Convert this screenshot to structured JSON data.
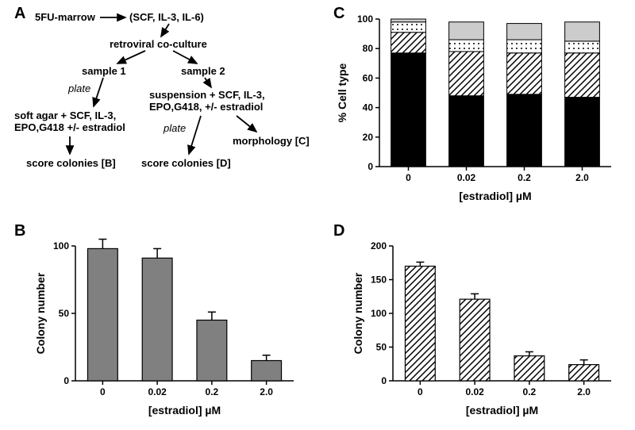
{
  "panelA": {
    "label": "A",
    "nodes": {
      "n1": "5FU-marrow",
      "n2": "(SCF, IL-3, IL-6)",
      "n3": "retroviral co-culture",
      "n4": "sample 1",
      "n5": "sample 2",
      "n6": "plate",
      "n7": "soft agar + SCF, IL-3,\nEPO,G418 +/- estradiol",
      "n8": "score colonies [B]",
      "n9": "suspension + SCF, IL-3,\nEPO,G418, +/- estradiol",
      "n10": "plate",
      "n11": "score colonies [D]",
      "n12": "morphology [C]"
    }
  },
  "panelB": {
    "label": "B",
    "type": "bar",
    "categories": [
      "0",
      "0.02",
      "0.2",
      "2.0"
    ],
    "values": [
      98,
      91,
      45,
      15
    ],
    "errors": [
      7,
      7,
      6,
      4
    ],
    "ylim": [
      0,
      100
    ],
    "ytick_step": 50,
    "bar_fill": "#808080",
    "axis_color": "#000000",
    "ylabel": "Colony number",
    "xlabel": "[estradiol] µM",
    "label_fontsize": 14,
    "tick_fontsize": 12,
    "background": "#ffffff"
  },
  "panelC": {
    "label": "C",
    "type": "stacked-bar",
    "categories": [
      "0",
      "0.02",
      "0.2",
      "2.0"
    ],
    "series": [
      {
        "name": "black",
        "fill": "solid-black",
        "values": [
          77,
          48,
          49,
          47
        ]
      },
      {
        "name": "hatch",
        "fill": "diag-hatch",
        "values": [
          14,
          30,
          28,
          30
        ]
      },
      {
        "name": "dots",
        "fill": "dots",
        "values": [
          7,
          8,
          9,
          8
        ]
      },
      {
        "name": "gray",
        "fill": "solid-lightgray",
        "values": [
          2,
          12,
          11,
          13
        ]
      }
    ],
    "ylim": [
      0,
      100
    ],
    "ytick_step": 20,
    "ylabel": "% Cell type",
    "xlabel": "[estradiol] µM",
    "colors": {
      "solid-black": "#000000",
      "solid-lightgray": "#cccccc",
      "axis": "#000000",
      "background": "#ffffff"
    }
  },
  "panelD": {
    "label": "D",
    "type": "bar",
    "categories": [
      "0",
      "0.02",
      "0.2",
      "2.0"
    ],
    "values": [
      170,
      121,
      37,
      24
    ],
    "errors": [
      6,
      8,
      6,
      7
    ],
    "ylim": [
      0,
      200
    ],
    "ytick_step": 50,
    "bar_fill": "diag-hatch",
    "axis_color": "#000000",
    "ylabel": "Colony number",
    "xlabel": "[estradiol] µM"
  }
}
